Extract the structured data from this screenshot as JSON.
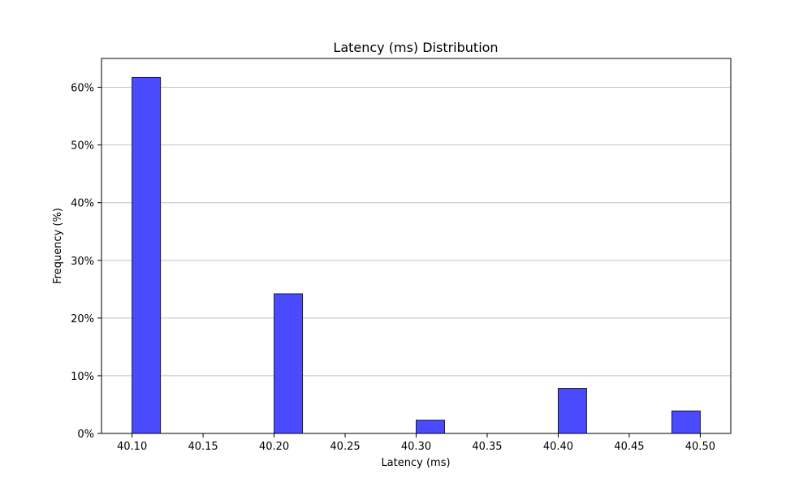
{
  "chart_data": {
    "type": "bar",
    "title": "Latency (ms) Distribution",
    "xlabel": "Latency (ms)",
    "ylabel": "Frequency (%)",
    "bins": [
      {
        "start": 40.1,
        "end": 40.12,
        "value": 61.7
      },
      {
        "start": 40.2,
        "end": 40.22,
        "value": 24.2
      },
      {
        "start": 40.3,
        "end": 40.32,
        "value": 2.3
      },
      {
        "start": 40.4,
        "end": 40.42,
        "value": 7.8
      },
      {
        "start": 40.48,
        "end": 40.5,
        "value": 3.9
      }
    ],
    "xlim": [
      40.0785,
      40.5215
    ],
    "ylim": [
      0,
      65
    ],
    "xticks": [
      "40.10",
      "40.15",
      "40.20",
      "40.25",
      "40.30",
      "40.35",
      "40.40",
      "40.45",
      "40.50"
    ],
    "xtick_values": [
      40.1,
      40.15,
      40.2,
      40.25,
      40.3,
      40.35,
      40.4,
      40.45,
      40.5
    ],
    "yticks": [
      "0%",
      "10%",
      "20%",
      "30%",
      "40%",
      "50%",
      "60%"
    ],
    "ytick_values": [
      0,
      10,
      20,
      30,
      40,
      50,
      60
    ],
    "grid": "y",
    "colors": {
      "bar_fill": "#4a4aff",
      "bar_edge": "#1a1a40",
      "grid": "#c0c0c0"
    }
  }
}
